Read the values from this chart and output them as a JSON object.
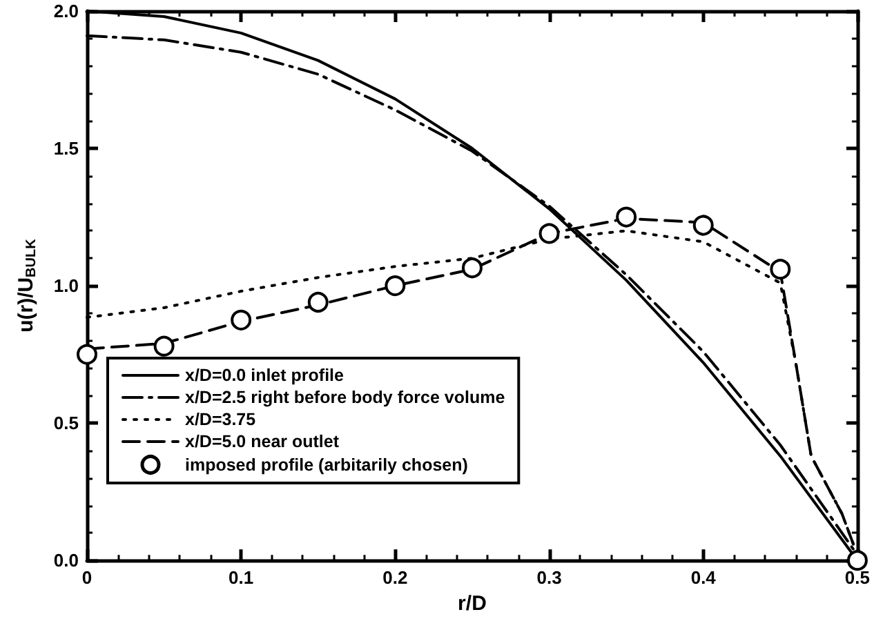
{
  "chart_data": {
    "type": "line",
    "xlabel": "r/D",
    "ylabel": "u(r)/U$_{BULK}$",
    "xlim": [
      0,
      0.5
    ],
    "xticks": [
      0,
      0.1,
      0.2,
      0.3,
      0.4,
      0.5
    ],
    "ylim": [
      0,
      2
    ],
    "yticks": [
      {
        "value": 0,
        "label": "0.0"
      },
      {
        "value": 0.5,
        "label": "0.5"
      },
      {
        "value": 1,
        "label": "1.0"
      },
      {
        "value": 1.5,
        "label": "1.5"
      },
      {
        "value": 2,
        "label": "2.0"
      }
    ],
    "grid": false,
    "legend": "bottom left",
    "marker": "none",
    "series": [
      {
        "name": "x/D=0.0 inlet profile",
        "color": "#000000",
        "line_style": "solid",
        "x": [
          0,
          0.05,
          0.1,
          0.15,
          0.2,
          0.25,
          0.3,
          0.35,
          0.4,
          0.45,
          0.5
        ],
        "values": [
          2.0,
          1.98,
          1.92,
          1.82,
          1.68,
          1.5,
          1.28,
          1.02,
          0.72,
          0.38,
          0.0
        ]
      },
      {
        "name": "x/D=2.5 right before body force volume",
        "color": "#000000",
        "line_style": "dashdot",
        "x": [
          0,
          0.05,
          0.1,
          0.15,
          0.2,
          0.25,
          0.3,
          0.35,
          0.4,
          0.45,
          0.5
        ],
        "values": [
          1.91,
          1.895,
          1.85,
          1.77,
          1.64,
          1.49,
          1.29,
          1.04,
          0.76,
          0.42,
          0.02
        ]
      },
      {
        "name": "x/D=3.75",
        "color": "#000000",
        "line_style": "dotted",
        "x": [
          0,
          0.05,
          0.1,
          0.15,
          0.2,
          0.25,
          0.3,
          0.35,
          0.4,
          0.45,
          0.46,
          0.47,
          0.49,
          0.5
        ],
        "values": [
          0.885,
          0.92,
          0.98,
          1.03,
          1.07,
          1.1,
          1.17,
          1.2,
          1.16,
          1.01,
          0.72,
          0.38,
          0.17,
          0.02
        ]
      },
      {
        "name": "x/D=5.0 near outlet",
        "color": "#000000",
        "line_style": "dashed",
        "x": [
          0,
          0.05,
          0.1,
          0.15,
          0.2,
          0.25,
          0.3,
          0.35,
          0.4,
          0.45,
          0.46,
          0.47,
          0.49,
          0.5
        ],
        "values": [
          0.77,
          0.79,
          0.87,
          0.93,
          1.0,
          1.06,
          1.19,
          1.245,
          1.23,
          1.05,
          0.72,
          0.38,
          0.17,
          0.02
        ]
      },
      {
        "name": "imposed profile (arbitarily chosen)",
        "type": "scatter",
        "marker": "circle",
        "color": "#000000",
        "x": [
          0,
          0.05,
          0.1,
          0.15,
          0.2,
          0.25,
          0.3,
          0.35,
          0.4,
          0.45,
          0.5
        ],
        "values": [
          0.75,
          0.78,
          0.875,
          0.94,
          1.0,
          1.065,
          1.19,
          1.25,
          1.22,
          1.06,
          0.0
        ]
      }
    ]
  }
}
